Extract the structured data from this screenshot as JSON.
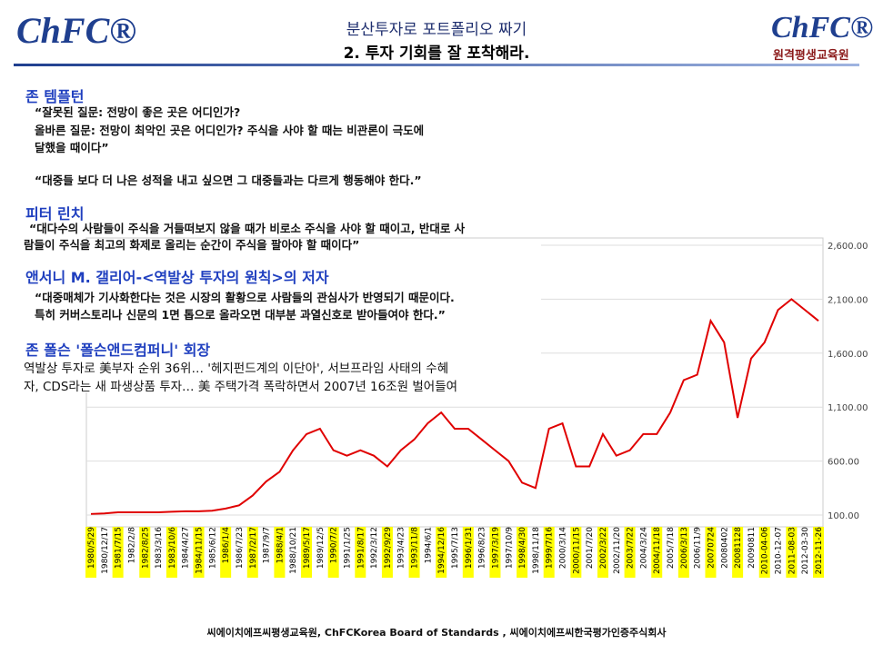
{
  "header": {
    "logo_left": "ChFC®",
    "title": "분산투자로 포트폴리오 짜기",
    "subtitle": "2. 투자 기회를 잘 포착해라.",
    "logo_right": "ChFC®",
    "logo_right_sub": "원격평생교육원"
  },
  "sections": [
    {
      "heading": "존 템플턴",
      "lines": [
        "“잘못된 질문: 전망이 좋은 곳은 어디인가?",
        "올바른 질문: 전망이 최악인 곳은 어디인가? 주식을 사야 할 때는 비관론이 극도에",
        "달했을 때이다”",
        "“대중들 보다 더 나은 성적을 내고 싶으면 그 대중들과는 다르게 행동해야 한다.”"
      ]
    },
    {
      "heading": "피터 린치",
      "lines": [
        "“대다수의 사람들이 주식을 거들떠보지 않을 때가 비로소 주식을 사야 할 때이고, 반대로 사",
        "람들이 주식을 최고의 화제로 올리는 순간이 주식을 팔아야 할 때이다”"
      ]
    },
    {
      "heading": "앤서니 M. 갤리어-<역발상 투자의 원칙>의 저자",
      "lines": [
        "“대중매체가 기사화한다는 것은 시장의 활황으로 사람들의 관심사가 반영되기 때문이다.",
        "특히 커버스토리나 신문의 1면 톱으로 올라오면 대부분 과열신호로 받아들여야 한다.”"
      ]
    },
    {
      "heading": "존 폴슨 '폴슨앤드컴퍼니' 회장",
      "lines": [
        "역발상 투자로 美부자 순위 36위… '헤지펀드계의 이단아', 서브프라임 사태의 수혜",
        "자, CDS라는 새 파생상품 투자… 美 주택가격 폭락하면서 2007년 16조원 벌어들여"
      ]
    }
  ],
  "chart": {
    "type": "line",
    "color": "#e00000",
    "categories": [
      "1980/5/29",
      "1980/12/17",
      "1981/7/15",
      "1982/2/8",
      "1982/8/25",
      "1983/3/16",
      "1983/10/6",
      "1984/4/27",
      "1984/11/15",
      "1985/6/12",
      "1986/1/4",
      "1986/7/23",
      "1987/2/17",
      "1987/9/7",
      "1988/4/1",
      "1988/10/21",
      "1989/5/17",
      "1989/12/5",
      "1990/7/2",
      "1991/1/25",
      "1991/8/17",
      "1992/3/12",
      "1992/9/29",
      "1993/4/23",
      "1993/11/8",
      "1994/6/1",
      "1994/12/16",
      "1995/7/13",
      "1996/1/31",
      "1996/8/23",
      "1997/3/19",
      "1997/10/9",
      "1998/4/30",
      "1998/11/18",
      "1999/7/16",
      "2000/3/14",
      "2000/11/15",
      "2001/7/20",
      "2002/3/22",
      "2002/11/20",
      "2003/7/22",
      "2004/3/24",
      "2004/11/18",
      "2005/7/18",
      "2006/3/13",
      "2006/11/9",
      "20070724",
      "20080402",
      "20081128",
      "20090811",
      "2010-04-06",
      "2010-12-07",
      "2011-08-03",
      "2012-03-30",
      "2012-11-26"
    ],
    "values": [
      110,
      115,
      125,
      125,
      125,
      125,
      130,
      135,
      135,
      140,
      160,
      190,
      280,
      410,
      500,
      700,
      850,
      900,
      700,
      650,
      700,
      650,
      550,
      700,
      800,
      950,
      1050,
      900,
      900,
      800,
      700,
      600,
      400,
      350,
      900,
      950,
      550,
      550,
      850,
      650,
      700,
      850,
      850,
      1050,
      1350,
      1400,
      1900,
      1700,
      1000,
      1550,
      1700,
      2000,
      2100,
      2000,
      1900
    ],
    "ylim": [
      100,
      2600
    ],
    "yticks": [
      {
        "value": 100,
        "label": "100.00"
      },
      {
        "value": 600,
        "label": "600.00"
      },
      {
        "value": 1100,
        "label": "1,100.00"
      },
      {
        "value": 1600,
        "label": "1,600.00"
      },
      {
        "value": 2100,
        "label": "2,100.00"
      },
      {
        "value": 2600,
        "label": "2,600.00"
      }
    ],
    "grid": true
  },
  "footer": "씨에이치에프씨평생교육원, ChFCKorea Board of Standards , 씨에이치에프씨한국평가인증주식회사"
}
